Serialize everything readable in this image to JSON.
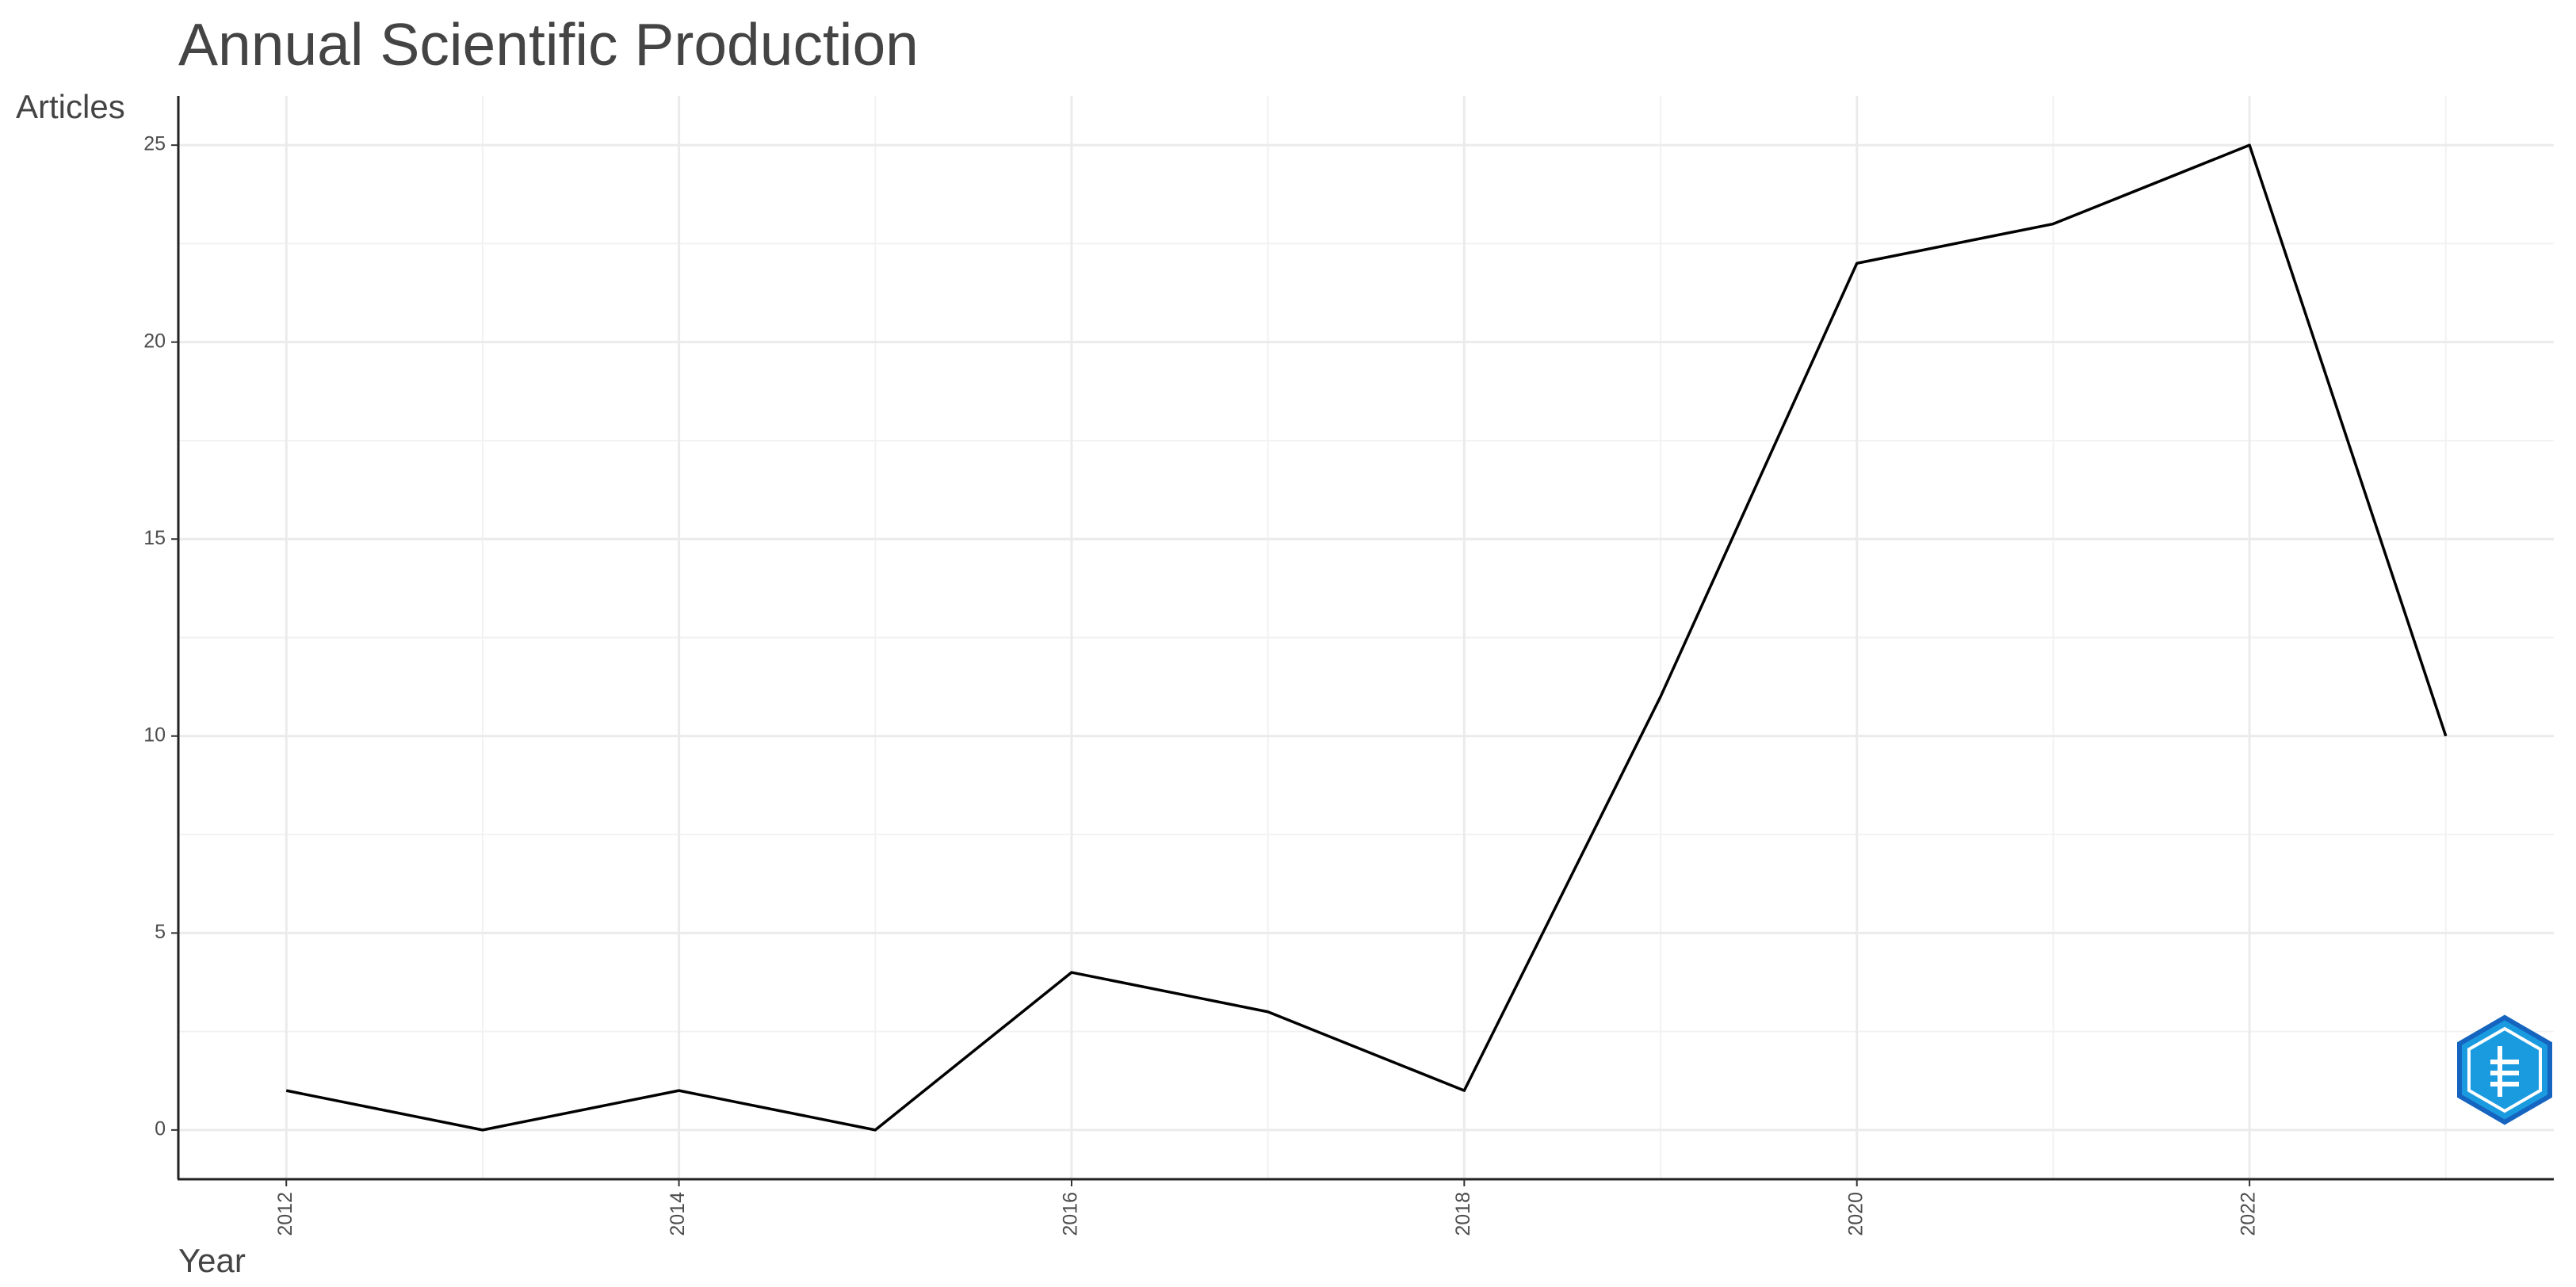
{
  "chart_data": {
    "type": "line",
    "title": "Annual Scientific Production",
    "x_label": "Year",
    "y_label": "Articles",
    "x": [
      2012,
      2013,
      2014,
      2015,
      2016,
      2017,
      2018,
      2019,
      2020,
      2021,
      2022,
      2023
    ],
    "values": [
      1,
      0,
      1,
      0,
      4,
      3,
      1,
      11,
      22,
      23,
      25,
      10
    ],
    "color": "#000000",
    "xlim": [
      2011.45,
      2023.55
    ],
    "xticks": [
      2012,
      2014,
      2016,
      2018,
      2020,
      2022
    ],
    "minor_xticks": [
      2013,
      2015,
      2017,
      2019,
      2021,
      2023
    ],
    "ylim": [
      -1.25,
      26.25
    ],
    "yticks": [
      0,
      5,
      10,
      15,
      20,
      25
    ],
    "minor_yticks": [
      2.5,
      7.5,
      12.5,
      17.5,
      22.5
    ],
    "grid": true
  }
}
